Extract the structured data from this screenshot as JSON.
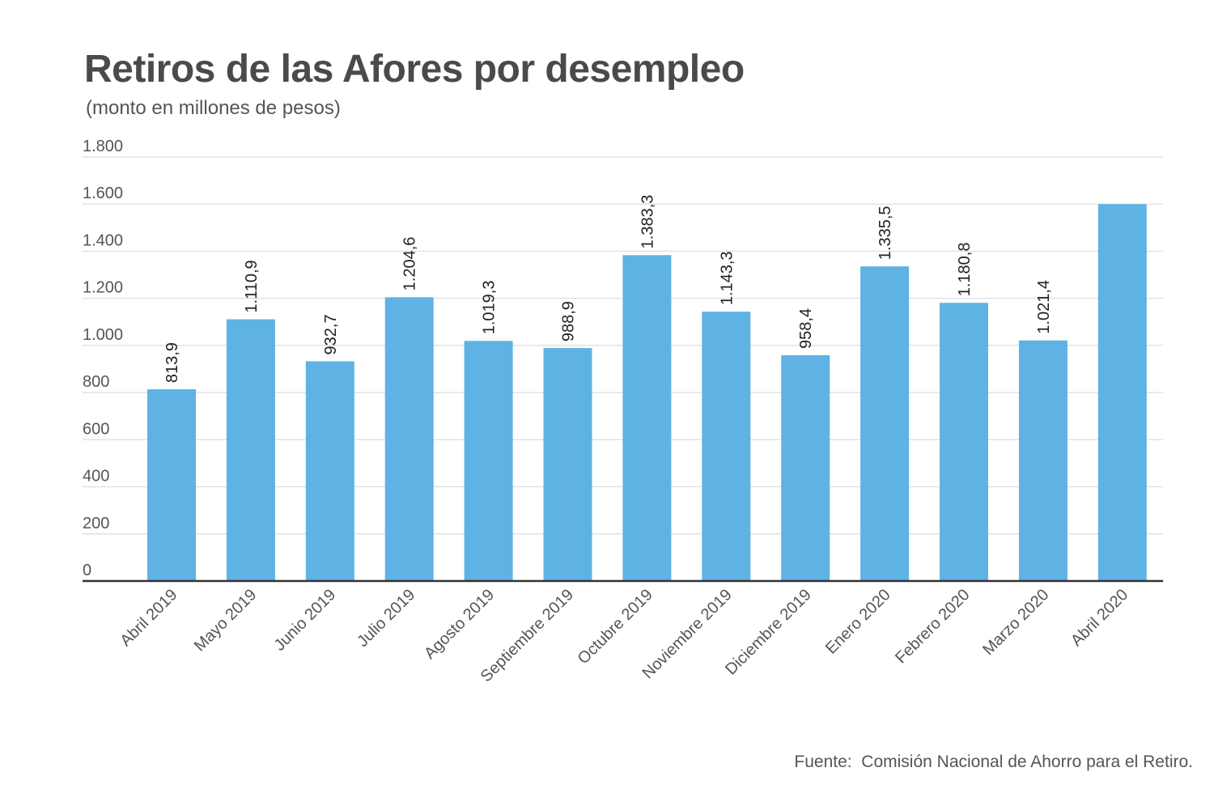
{
  "chart_data": {
    "type": "bar",
    "title": "Retiros de las Afores por desempleo",
    "subtitle": "(monto en millones de pesos)",
    "xlabel": "",
    "ylabel": "",
    "categories": [
      "Abril 2019",
      "Mayo 2019",
      "Junio 2019",
      "Julio 2019",
      "Agosto 2019",
      "Septiembre 2019",
      "Octubre 2019",
      "Noviembre 2019",
      "Diciembre 2019",
      "Enero 2020",
      "Febrero 2020",
      "Marzo 2020",
      "Abril 2020"
    ],
    "values": [
      813.9,
      1110.9,
      932.7,
      1204.6,
      1019.3,
      988.9,
      1383.3,
      1143.3,
      958.4,
      1335.5,
      1180.8,
      1021.4,
      1600
    ],
    "data_labels": [
      "813,9",
      "1.110,9",
      "932,7",
      "1.204,6",
      "1.019,3",
      "988,9",
      "1.383,3",
      "1.143,3",
      "958,4",
      "1.335,5",
      "1.180,8",
      "1.021,4",
      ""
    ],
    "ylim": [
      0,
      1800
    ],
    "y_ticks": [
      0,
      200,
      400,
      600,
      800,
      1000,
      1200,
      1400,
      1600,
      1800
    ],
    "y_tick_labels": [
      "0",
      "200",
      "400",
      "600",
      "800",
      "1.000",
      "1.200",
      "1.400",
      "1.600",
      "1.800"
    ],
    "grid": true,
    "legend": "none",
    "bar_color": "#5eb3e4",
    "source": "Fuente:  Comisión Nacional de Ahorro para el Retiro."
  }
}
